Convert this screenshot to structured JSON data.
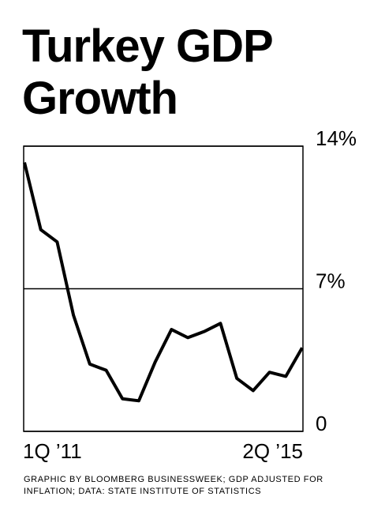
{
  "chart_data": {
    "type": "line",
    "title": "Turkey GDP Growth",
    "categories": [
      "1Q ’11",
      null,
      null,
      null,
      null,
      null,
      null,
      null,
      null,
      null,
      null,
      null,
      null,
      null,
      null,
      null,
      null,
      "2Q ’15"
    ],
    "values": [
      13.2,
      9.9,
      9.3,
      5.7,
      3.3,
      3.0,
      1.6,
      1.5,
      3.4,
      5.0,
      4.6,
      4.9,
      5.3,
      2.6,
      2.0,
      2.9,
      2.7,
      4.1
    ],
    "color": "#000000",
    "ylim": [
      0,
      14
    ],
    "yticks": [
      {
        "value": 0,
        "label": "0"
      },
      {
        "value": 7,
        "label": "7%"
      },
      {
        "value": 14,
        "label": "14%"
      }
    ],
    "grid": true,
    "source": "GRAPHIC BY BLOOMBERG BUSINESSWEEK; GDP ADJUSTED FOR INFLATION; DATA: STATE INSTITUTE OF STATISTICS"
  }
}
